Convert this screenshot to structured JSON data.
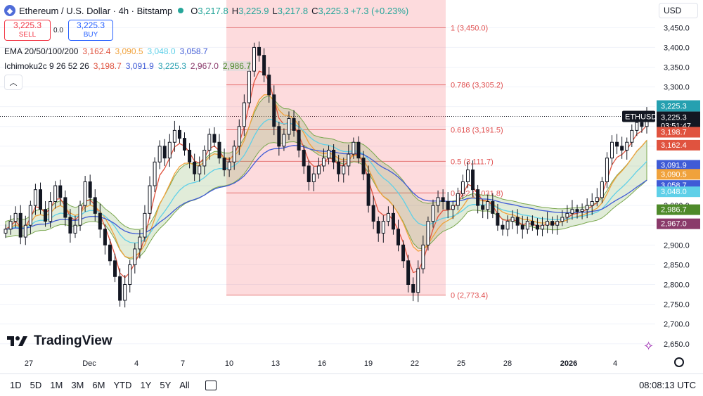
{
  "header": {
    "symbol_icon": "ethereum-icon",
    "title": "Ethereum / U.S. Dollar · 4h · Bitstamp",
    "o_label": "O",
    "o_value": "3,217.8",
    "h_label": "H",
    "h_value": "3,225.9",
    "l_label": "L",
    "l_value": "3,217.8",
    "c_label": "C",
    "c_value": "3,225.3",
    "change": "+7.3 (+0.23%)"
  },
  "trade": {
    "sell_price": "3,225.3",
    "sell_label": "SELL",
    "spread": "0.0",
    "buy_price": "3,225.3",
    "buy_label": "BUY"
  },
  "indicators": {
    "ema": {
      "name": "EMA 20/50/100/200",
      "values": [
        "3,162.4",
        "3,090.5",
        "3,048.0",
        "3,058.7"
      ],
      "colors": [
        "#e0533f",
        "#f0a23c",
        "#5fd0e8",
        "#3f5bd6"
      ]
    },
    "ichimoku": {
      "name": "Ichimoku2c 9 26 52 26",
      "values": [
        "3,198.7",
        "3,091.9",
        "3,225.3",
        "2,967.0",
        "2,986.7"
      ],
      "colors": [
        "#e0533f",
        "#3f5bd6",
        "#26a0b0",
        "#8a3a6a",
        "#4e8a2a"
      ]
    }
  },
  "currency": "USD",
  "tradingview_logo": "TradingView",
  "bottom_bar": {
    "timeframes": [
      "1D",
      "5D",
      "1M",
      "3M",
      "6M",
      "YTD",
      "1Y",
      "5Y",
      "All"
    ],
    "time": "08:08:13 UTC"
  },
  "chart_data": {
    "type": "candlestick",
    "symbol_tag": "ETHUSD",
    "countdown": "03:51:47",
    "last_price": "3,225.3",
    "ylim": [
      2630,
      3520
    ],
    "y_ticks": [
      2650,
      2700,
      2750,
      2800,
      2850,
      2900,
      2950,
      3000,
      3050,
      3100,
      3150,
      3200,
      3250,
      3300,
      3350,
      3400,
      3450
    ],
    "y_tick_labels": [
      "2,650.0",
      "2,700.0",
      "2,750.0",
      "2,800.0",
      "2,850.0",
      "2,900.0",
      "2,950.0",
      "3,000.0",
      "3,050.0",
      "3,100.0",
      "3,150.0",
      "3,200.0",
      "3,250.0",
      "3,300.0",
      "3,350.0",
      "3,400.0",
      "3,450.0"
    ],
    "x_labels": [
      "27",
      "Dec",
      "4",
      "7",
      "10",
      "13",
      "16",
      "19",
      "22",
      "25",
      "28",
      "2026",
      "4"
    ],
    "fib_levels": [
      {
        "ratio": "1",
        "price": 3450.0,
        "label": "1 (3,450.0)"
      },
      {
        "ratio": "0.786",
        "price": 3305.2,
        "label": "0.786 (3,305.2)"
      },
      {
        "ratio": "0.618",
        "price": 3191.5,
        "label": "0.618 (3,191.5)"
      },
      {
        "ratio": "0.5",
        "price": 3111.7,
        "label": "0.5 (3,111.7)"
      },
      {
        "ratio": "0.382",
        "price": 3031.8,
        "label": "0.382 (3,031.8)"
      },
      {
        "ratio": "0",
        "price": 2773.4,
        "label": "0 (2,773.4)"
      }
    ],
    "price_badges": [
      {
        "value": 3225.3,
        "label": "3,225.3",
        "color": "#26a0b0"
      },
      {
        "value": 3198.7,
        "label": "3,198.7",
        "color": "#e0533f"
      },
      {
        "value": 3162.4,
        "label": "3,162.4",
        "color": "#e0533f"
      },
      {
        "value": 3091.9,
        "label": "3,091.9",
        "color": "#3f5bd6"
      },
      {
        "value": 3090.5,
        "label": "3,090.5",
        "color": "#f0a23c"
      },
      {
        "value": 3058.7,
        "label": "3,058.7",
        "color": "#3f5bd6"
      },
      {
        "value": 3048.0,
        "label": "3,048.0",
        "color": "#5fd0e8"
      },
      {
        "value": 2986.7,
        "label": "2,986.7",
        "color": "#4e8a2a"
      },
      {
        "value": 2967.0,
        "label": "2,967.0",
        "color": "#8a3a6a"
      }
    ],
    "closes": [
      2940,
      2960,
      2980,
      2920,
      2950,
      3000,
      3040,
      2990,
      2960,
      3010,
      3050,
      3020,
      2970,
      2930,
      2950,
      3000,
      3060,
      3020,
      2980,
      2940,
      2900,
      2860,
      2820,
      2760,
      2800,
      2850,
      2890,
      2920,
      2980,
      3050,
      3110,
      3150,
      3120,
      3160,
      3190,
      3170,
      3140,
      3110,
      3080,
      3100,
      3140,
      3180,
      3160,
      3120,
      3090,
      3110,
      3150,
      3200,
      3260,
      3340,
      3400,
      3380,
      3330,
      3280,
      3200,
      3150,
      3180,
      3220,
      3190,
      3140,
      3100,
      3060,
      3080,
      3100,
      3120,
      3140,
      3110,
      3080,
      3100,
      3130,
      3160,
      3120,
      3080,
      3000,
      2960,
      2930,
      2960,
      2980,
      2940,
      2900,
      2860,
      2800,
      2780,
      2840,
      2900,
      2960,
      3000,
      3020,
      3010,
      2990,
      3000,
      3030,
      3060,
      3090,
      3040,
      3000,
      2990,
      3010,
      2980,
      2950,
      2940,
      2960,
      2970,
      2950,
      2940,
      2960,
      2950,
      2940,
      2950,
      2960,
      2950,
      2960,
      2970,
      2980,
      2990,
      2985,
      2990,
      3000,
      3010,
      3020,
      3060,
      3120,
      3160,
      3150,
      3140,
      3160,
      3190,
      3210,
      3200,
      3225.3
    ]
  }
}
